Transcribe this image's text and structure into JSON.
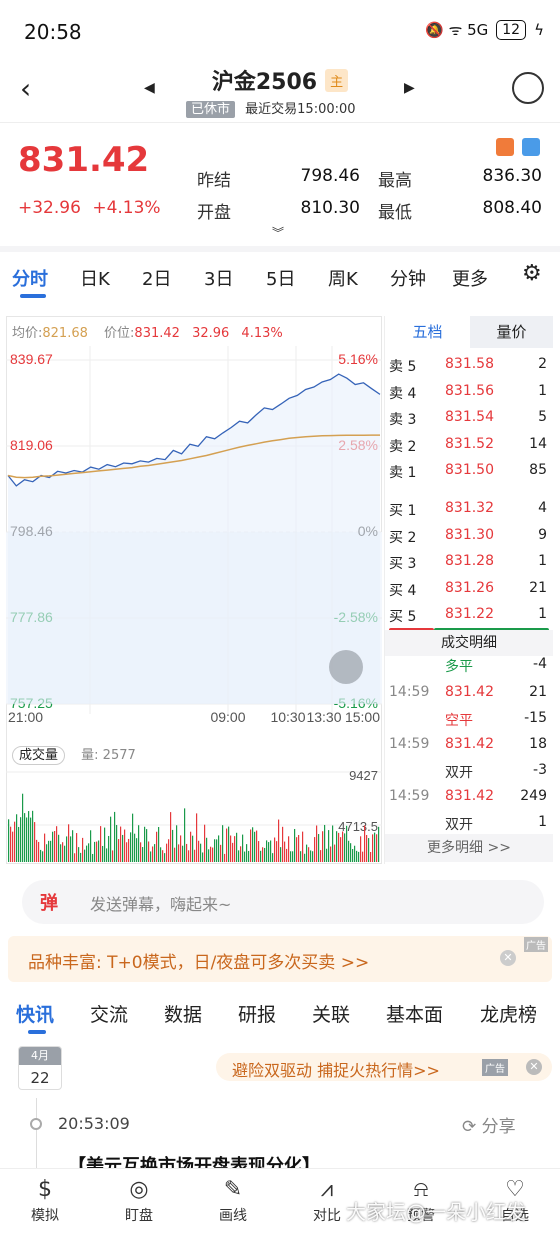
{
  "status": {
    "time": "20:58",
    "icons": "🔕 ᯤ 5G",
    "battery": "12"
  },
  "header": {
    "title": "沪金2506",
    "badge": "主",
    "closed": "已休市",
    "last_trade": "最近交易15:00:00"
  },
  "quote": {
    "price": "831.42",
    "change": "+32.96",
    "change_pct": "+4.13%",
    "prev_settle_label": "昨结",
    "prev_settle": "798.46",
    "high_label": "最高",
    "high": "836.30",
    "open_label": "开盘",
    "open": "810.30",
    "low_label": "最低",
    "low": "808.40"
  },
  "tabs": [
    "分时",
    "日K",
    "2日",
    "3日",
    "5日",
    "周K",
    "分钟",
    "更多"
  ],
  "chart_header": {
    "avg_label": "均价:",
    "avg": "821.68",
    "price_label": "价位:",
    "price": "831.42",
    "chg": "32.96",
    "pct": "4.13%"
  },
  "chart_data": {
    "type": "line",
    "y_left": [
      "839.67",
      "819.06",
      "798.46",
      "777.86",
      "757.25"
    ],
    "y_right": [
      "5.16%",
      "2.58%",
      "0%",
      "-2.58%",
      "-5.16%"
    ],
    "x_ticks": [
      "21:00",
      "09:00",
      "10:30",
      "13:30",
      "15:00"
    ],
    "ylim": [
      757.25,
      839.67
    ],
    "price": [
      812,
      809.5,
      811,
      810.5,
      812,
      811.5,
      813,
      812.6,
      813.2,
      812.8,
      814,
      813.5,
      814.6,
      814.1,
      815,
      814.8,
      815.5,
      815.2,
      816.1,
      815.8,
      818,
      817.2,
      819.5,
      819,
      821.3,
      820.8,
      822.2,
      823.5,
      825,
      824.6,
      826.5,
      828.2,
      827.8,
      829.1,
      830.5,
      831.2,
      832.6,
      833.2,
      834.4,
      835,
      836.3,
      835.3,
      833.8,
      834.2,
      832.8,
      831.42
    ],
    "avg": [
      812,
      811.6,
      811.5,
      811.6,
      811.8,
      811.9,
      812.1,
      812.3,
      812.5,
      812.7,
      812.9,
      813.1,
      813.3,
      813.5,
      813.7,
      813.9,
      814.2,
      814.4,
      814.7,
      815,
      815.3,
      815.6,
      816,
      816.4,
      816.8,
      817.3,
      817.8,
      818.3,
      818.8,
      819.2,
      819.6,
      820,
      820.3,
      820.6,
      820.9,
      821.1,
      821.3,
      821.4,
      821.5,
      821.55,
      821.6,
      821.62,
      821.64,
      821.66,
      821.67,
      821.68
    ],
    "volume_label": "成交量",
    "volume_text": "量: 2577",
    "volume_ticks": [
      "9427",
      "4713.5"
    ]
  },
  "orderbook": {
    "tab_five": "五档",
    "tab_vol": "量价",
    "asks": [
      {
        "label": "卖 5",
        "price": "831.58",
        "vol": "2"
      },
      {
        "label": "卖 4",
        "price": "831.56",
        "vol": "1"
      },
      {
        "label": "卖 3",
        "price": "831.54",
        "vol": "5"
      },
      {
        "label": "卖 2",
        "price": "831.52",
        "vol": "14"
      },
      {
        "label": "卖 1",
        "price": "831.50",
        "vol": "85"
      }
    ],
    "bids": [
      {
        "label": "买 1",
        "price": "831.32",
        "vol": "4"
      },
      {
        "label": "买 2",
        "price": "831.30",
        "vol": "9"
      },
      {
        "label": "买 3",
        "price": "831.28",
        "vol": "1"
      },
      {
        "label": "买 4",
        "price": "831.26",
        "vol": "21"
      },
      {
        "label": "买 5",
        "price": "831.22",
        "vol": "1"
      }
    ],
    "trades_title": "成交明细",
    "trades": [
      {
        "time": "",
        "price": "",
        "vol": "",
        "type": "多平",
        "delta": "-4"
      },
      {
        "time": "14:59",
        "price": "831.42",
        "vol": "21",
        "type": "空平",
        "delta": "-15"
      },
      {
        "time": "14:59",
        "price": "831.42",
        "vol": "18",
        "type": "双开",
        "delta": "-3"
      },
      {
        "time": "14:59",
        "price": "831.42",
        "vol": "249",
        "type": "双开",
        "delta": "1"
      }
    ],
    "more": "更多明细 >>"
  },
  "danmu": {
    "icon": "弹",
    "placeholder": "发送弹幕，嗨起来~"
  },
  "promo": {
    "text": "品种丰富: T+0模式，日/夜盘可多次买卖 >>",
    "ad": "广告"
  },
  "news_tabs": [
    "快讯",
    "交流",
    "数据",
    "研报",
    "关联",
    "基本面",
    "龙虎榜"
  ],
  "news": {
    "month": "4月",
    "day": "22",
    "ad_text": "避险双驱动 捕捉火热行情>>",
    "ad": "广告",
    "time": "20:53:09",
    "share": "分享",
    "headline": "【美元互换市场开盘表现分化】"
  },
  "bottom_nav": [
    "模拟",
    "盯盘",
    "画线",
    "对比",
    "预警",
    "自选"
  ],
  "watermark": "大家坛@一朵小红发",
  "colors": {
    "up": "#e5383b",
    "down": "#1a9a4a",
    "accent": "#2a6fdb",
    "line": "#3563b8",
    "avg": "#d4a052"
  }
}
